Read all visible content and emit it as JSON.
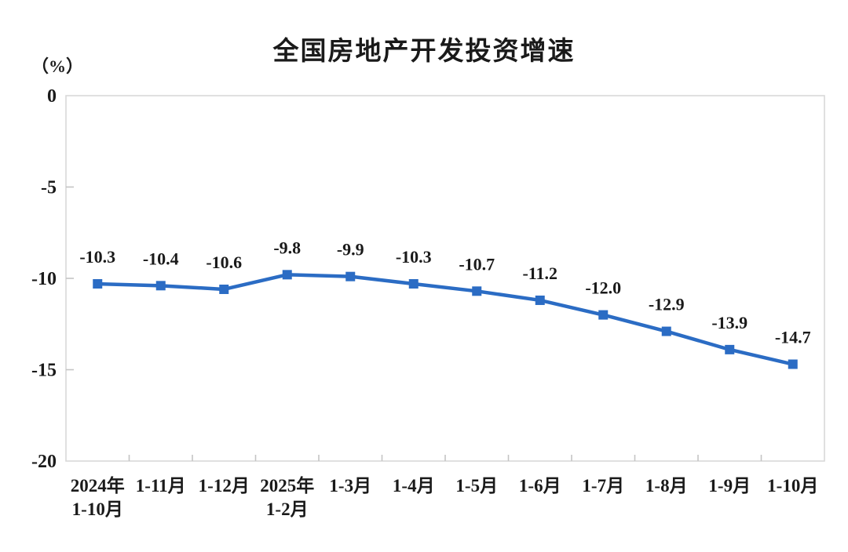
{
  "chart_data": {
    "type": "line",
    "title": "全国房地产开发投资增速",
    "unit_label": "（%）",
    "categories": [
      [
        "2024年",
        "1-10月"
      ],
      [
        "1-11月"
      ],
      [
        "1-12月"
      ],
      [
        "2025年",
        "1-2月"
      ],
      [
        "1-3月"
      ],
      [
        "1-4月"
      ],
      [
        "1-5月"
      ],
      [
        "1-6月"
      ],
      [
        "1-7月"
      ],
      [
        "1-8月"
      ],
      [
        "1-9月"
      ],
      [
        "1-10月"
      ]
    ],
    "values": [
      -10.3,
      -10.4,
      -10.6,
      -9.8,
      -9.9,
      -10.3,
      -10.7,
      -11.2,
      -12.0,
      -12.9,
      -13.9,
      -14.7
    ],
    "data_labels": [
      "-10.3",
      "-10.4",
      "-10.6",
      "-9.8",
      "-9.9",
      "-10.3",
      "-10.7",
      "-11.2",
      "-12.0",
      "-12.9",
      "-13.9",
      "-14.7"
    ],
    "ylim": [
      -20,
      0
    ],
    "yticks": [
      0,
      -5,
      -10,
      -15,
      -20
    ],
    "ytick_labels": [
      "0",
      "-5",
      "-10",
      "-15",
      "-20"
    ],
    "grid": false,
    "legend": "none",
    "xlabel": "",
    "ylabel": "（%）",
    "colors": {
      "line": "#2B6CC4",
      "marker": "#2B6CC4",
      "plot_border": "#D9D9D9",
      "tick": "#C4C4C4",
      "text": "#1a1a1a"
    },
    "marker_shape": "square"
  }
}
